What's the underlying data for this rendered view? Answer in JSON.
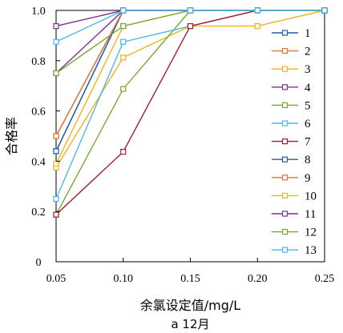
{
  "chart_data": {
    "type": "line",
    "title": "",
    "caption": "a 12月",
    "xlabel": "余氯设定值/mg/L",
    "ylabel": "合格率",
    "x": [
      0.05,
      0.1,
      0.15,
      0.2,
      0.25
    ],
    "xticks": [
      "0.05",
      "0.10",
      "0.15",
      "0.20",
      "0.25"
    ],
    "yticks": [
      "0",
      "0.2",
      "0.4",
      "0.6",
      "0.8",
      "1.0"
    ],
    "xlim": [
      0.05,
      0.25
    ],
    "ylim": [
      0,
      1.0
    ],
    "legend_position": "right",
    "series": [
      {
        "name": "1",
        "color": "#1f5fa8",
        "values": [
          0.44,
          1.0,
          1.0,
          1.0,
          1.0
        ]
      },
      {
        "name": "2",
        "color": "#e0733a",
        "values": [
          0.5,
          1.0,
          1.0,
          1.0,
          1.0
        ]
      },
      {
        "name": "3",
        "color": "#f0b21e",
        "values": [
          0.375,
          0.8125,
          0.9375,
          0.9375,
          1.0
        ]
      },
      {
        "name": "4",
        "color": "#7b2f8e",
        "values": [
          0.9375,
          1.0,
          1.0,
          1.0,
          1.0
        ]
      },
      {
        "name": "5",
        "color": "#78a832",
        "values": [
          0.1875,
          0.6875,
          1.0,
          1.0,
          1.0
        ]
      },
      {
        "name": "6",
        "color": "#4db8e8",
        "values": [
          0.25,
          0.875,
          0.9375,
          1.0,
          1.0
        ]
      },
      {
        "name": "7",
        "color": "#a01e32",
        "values": [
          0.1875,
          0.4375,
          0.9375,
          1.0,
          1.0
        ]
      },
      {
        "name": "8",
        "color": "#1f5fa8",
        "values": [
          0.44,
          1.0,
          1.0,
          1.0,
          1.0
        ]
      },
      {
        "name": "9",
        "color": "#e0733a",
        "values": [
          0.5,
          1.0,
          1.0,
          1.0,
          1.0
        ]
      },
      {
        "name": "10",
        "color": "#f0b21e",
        "values": [
          0.39,
          0.9375,
          1.0,
          1.0,
          1.0
        ]
      },
      {
        "name": "11",
        "color": "#7b2f8e",
        "values": [
          0.75,
          1.0,
          1.0,
          1.0,
          1.0
        ]
      },
      {
        "name": "12",
        "color": "#78a832",
        "values": [
          0.75,
          0.9375,
          1.0,
          1.0,
          1.0
        ]
      },
      {
        "name": "13",
        "color": "#4db8e8",
        "values": [
          0.875,
          1.0,
          1.0,
          1.0,
          1.0
        ]
      }
    ]
  }
}
